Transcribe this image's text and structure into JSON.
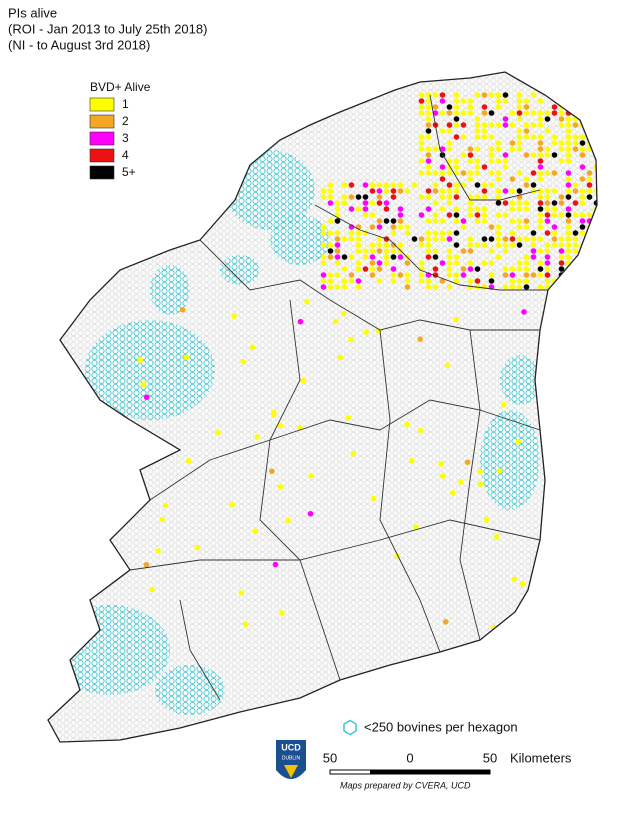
{
  "header": {
    "title": "PIs alive",
    "subtitle_1": "(ROI - Jan 2013 to July 25th 2018)",
    "subtitle_2": "(NI - to August 3rd 2018)"
  },
  "legend": {
    "title": "BVD+ Alive",
    "items": [
      {
        "label": "1",
        "color": "#ffff00"
      },
      {
        "label": "2",
        "color": "#f5a623"
      },
      {
        "label": "3",
        "color": "#ff00ff"
      },
      {
        "label": "4",
        "color": "#ee1111"
      },
      {
        "label": "5+",
        "color": "#000000"
      }
    ]
  },
  "hexagon_note": "<250 bovines per hexagon",
  "scale_bar": {
    "labels": [
      "50",
      "0",
      "50"
    ],
    "unit": "Kilometers"
  },
  "credit": "Maps prepared by CVERA, UCD",
  "logo": {
    "line_1": "UCD",
    "line_2": "DUBLIN"
  }
}
